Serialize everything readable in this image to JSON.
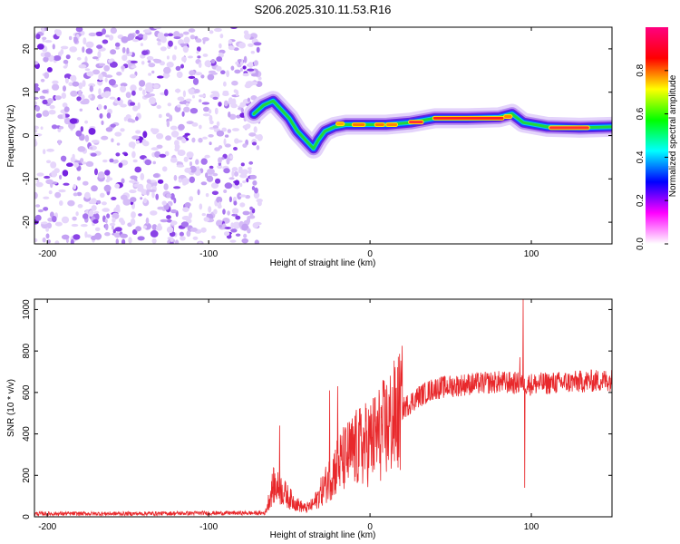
{
  "figure_title": "S206.2025.310.11.53.R16",
  "colors": {
    "axis": "#000000",
    "snr_line": "#e8282b",
    "background": "#ffffff"
  },
  "chart_data": [
    {
      "type": "heatmap",
      "title": "S206.2025.310.11.53.R16",
      "xlabel": "Height of straight line (km)",
      "ylabel": "Frequency (Hz)",
      "xlim": [
        -208,
        150
      ],
      "ylim": [
        -25,
        25
      ],
      "xticks": [
        -200,
        -100,
        0,
        100
      ],
      "yticks": [
        -20,
        -10,
        0,
        10,
        20
      ],
      "xtick_labels": [
        "-200",
        "-100",
        "0",
        "100"
      ],
      "ytick_labels": [
        "-20",
        "-10",
        "0",
        "10",
        "20"
      ],
      "noise_region_x": [
        -208,
        -68
      ],
      "ridge_track": [
        {
          "x": -72,
          "f": 5
        },
        {
          "x": -66,
          "f": 7
        },
        {
          "x": -60,
          "f": 8
        },
        {
          "x": -55,
          "f": 6
        },
        {
          "x": -50,
          "f": 4
        },
        {
          "x": -45,
          "f": 1
        },
        {
          "x": -40,
          "f": -1
        },
        {
          "x": -35,
          "f": -3
        },
        {
          "x": -32,
          "f": -1
        },
        {
          "x": -28,
          "f": 1
        },
        {
          "x": -22,
          "f": 2
        },
        {
          "x": -15,
          "f": 2.5
        },
        {
          "x": -5,
          "f": 2.5
        },
        {
          "x": 10,
          "f": 2.5
        },
        {
          "x": 25,
          "f": 3
        },
        {
          "x": 40,
          "f": 4
        },
        {
          "x": 60,
          "f": 4
        },
        {
          "x": 80,
          "f": 4.2
        },
        {
          "x": 88,
          "f": 5
        },
        {
          "x": 95,
          "f": 3
        },
        {
          "x": 110,
          "f": 2
        },
        {
          "x": 130,
          "f": 1.8
        },
        {
          "x": 150,
          "f": 2
        }
      ],
      "colorbar": {
        "label": "Normalized spectral amplitude",
        "range": [
          0,
          1
        ],
        "ticks": [
          0.0,
          0.2,
          0.4,
          0.6,
          0.8
        ],
        "tick_labels": [
          "0.0",
          "0.2",
          "0.4",
          "0.6",
          "0.8"
        ],
        "colormap": [
          "#ffffff",
          "#ff00ff",
          "#0000ff",
          "#00ffff",
          "#00ff00",
          "#ffff00",
          "#ff0000",
          "#ff0080"
        ]
      }
    },
    {
      "type": "line",
      "xlabel": "Height of straight line (km)",
      "ylabel": "SNR (10 * v/v)",
      "xlim": [
        -208,
        150
      ],
      "ylim": [
        0,
        1050
      ],
      "xticks": [
        -200,
        -100,
        0,
        100
      ],
      "yticks": [
        0,
        200,
        400,
        600,
        800,
        1000
      ],
      "xtick_labels": [
        "-200",
        "-100",
        "0",
        "100"
      ],
      "ytick_labels": [
        "0",
        "200",
        "400",
        "600",
        "800",
        "1000"
      ],
      "series": [
        {
          "name": "SNR",
          "color": "#e8282b",
          "envelope": [
            {
              "x": -208,
              "y": 15
            },
            {
              "x": -150,
              "y": 15
            },
            {
              "x": -100,
              "y": 18
            },
            {
              "x": -65,
              "y": 18
            },
            {
              "x": -60,
              "y": 150
            },
            {
              "x": -55,
              "y": 130
            },
            {
              "x": -50,
              "y": 90
            },
            {
              "x": -45,
              "y": 60
            },
            {
              "x": -40,
              "y": 40
            },
            {
              "x": -35,
              "y": 60
            },
            {
              "x": -28,
              "y": 150
            },
            {
              "x": -20,
              "y": 250
            },
            {
              "x": -10,
              "y": 320
            },
            {
              "x": 0,
              "y": 360
            },
            {
              "x": 10,
              "y": 430
            },
            {
              "x": 20,
              "y": 520
            },
            {
              "x": 30,
              "y": 580
            },
            {
              "x": 40,
              "y": 620
            },
            {
              "x": 60,
              "y": 640
            },
            {
              "x": 80,
              "y": 650
            },
            {
              "x": 100,
              "y": 640
            },
            {
              "x": 125,
              "y": 650
            },
            {
              "x": 150,
              "y": 660
            }
          ],
          "spikes": [
            {
              "x": -56,
              "y": 440
            },
            {
              "x": -25,
              "y": 610
            },
            {
              "x": -20,
              "y": 630
            },
            {
              "x": 93,
              "y": 770
            },
            {
              "x": 95,
              "y": 1050
            },
            {
              "x": 96,
              "y": 140
            }
          ]
        }
      ]
    }
  ]
}
